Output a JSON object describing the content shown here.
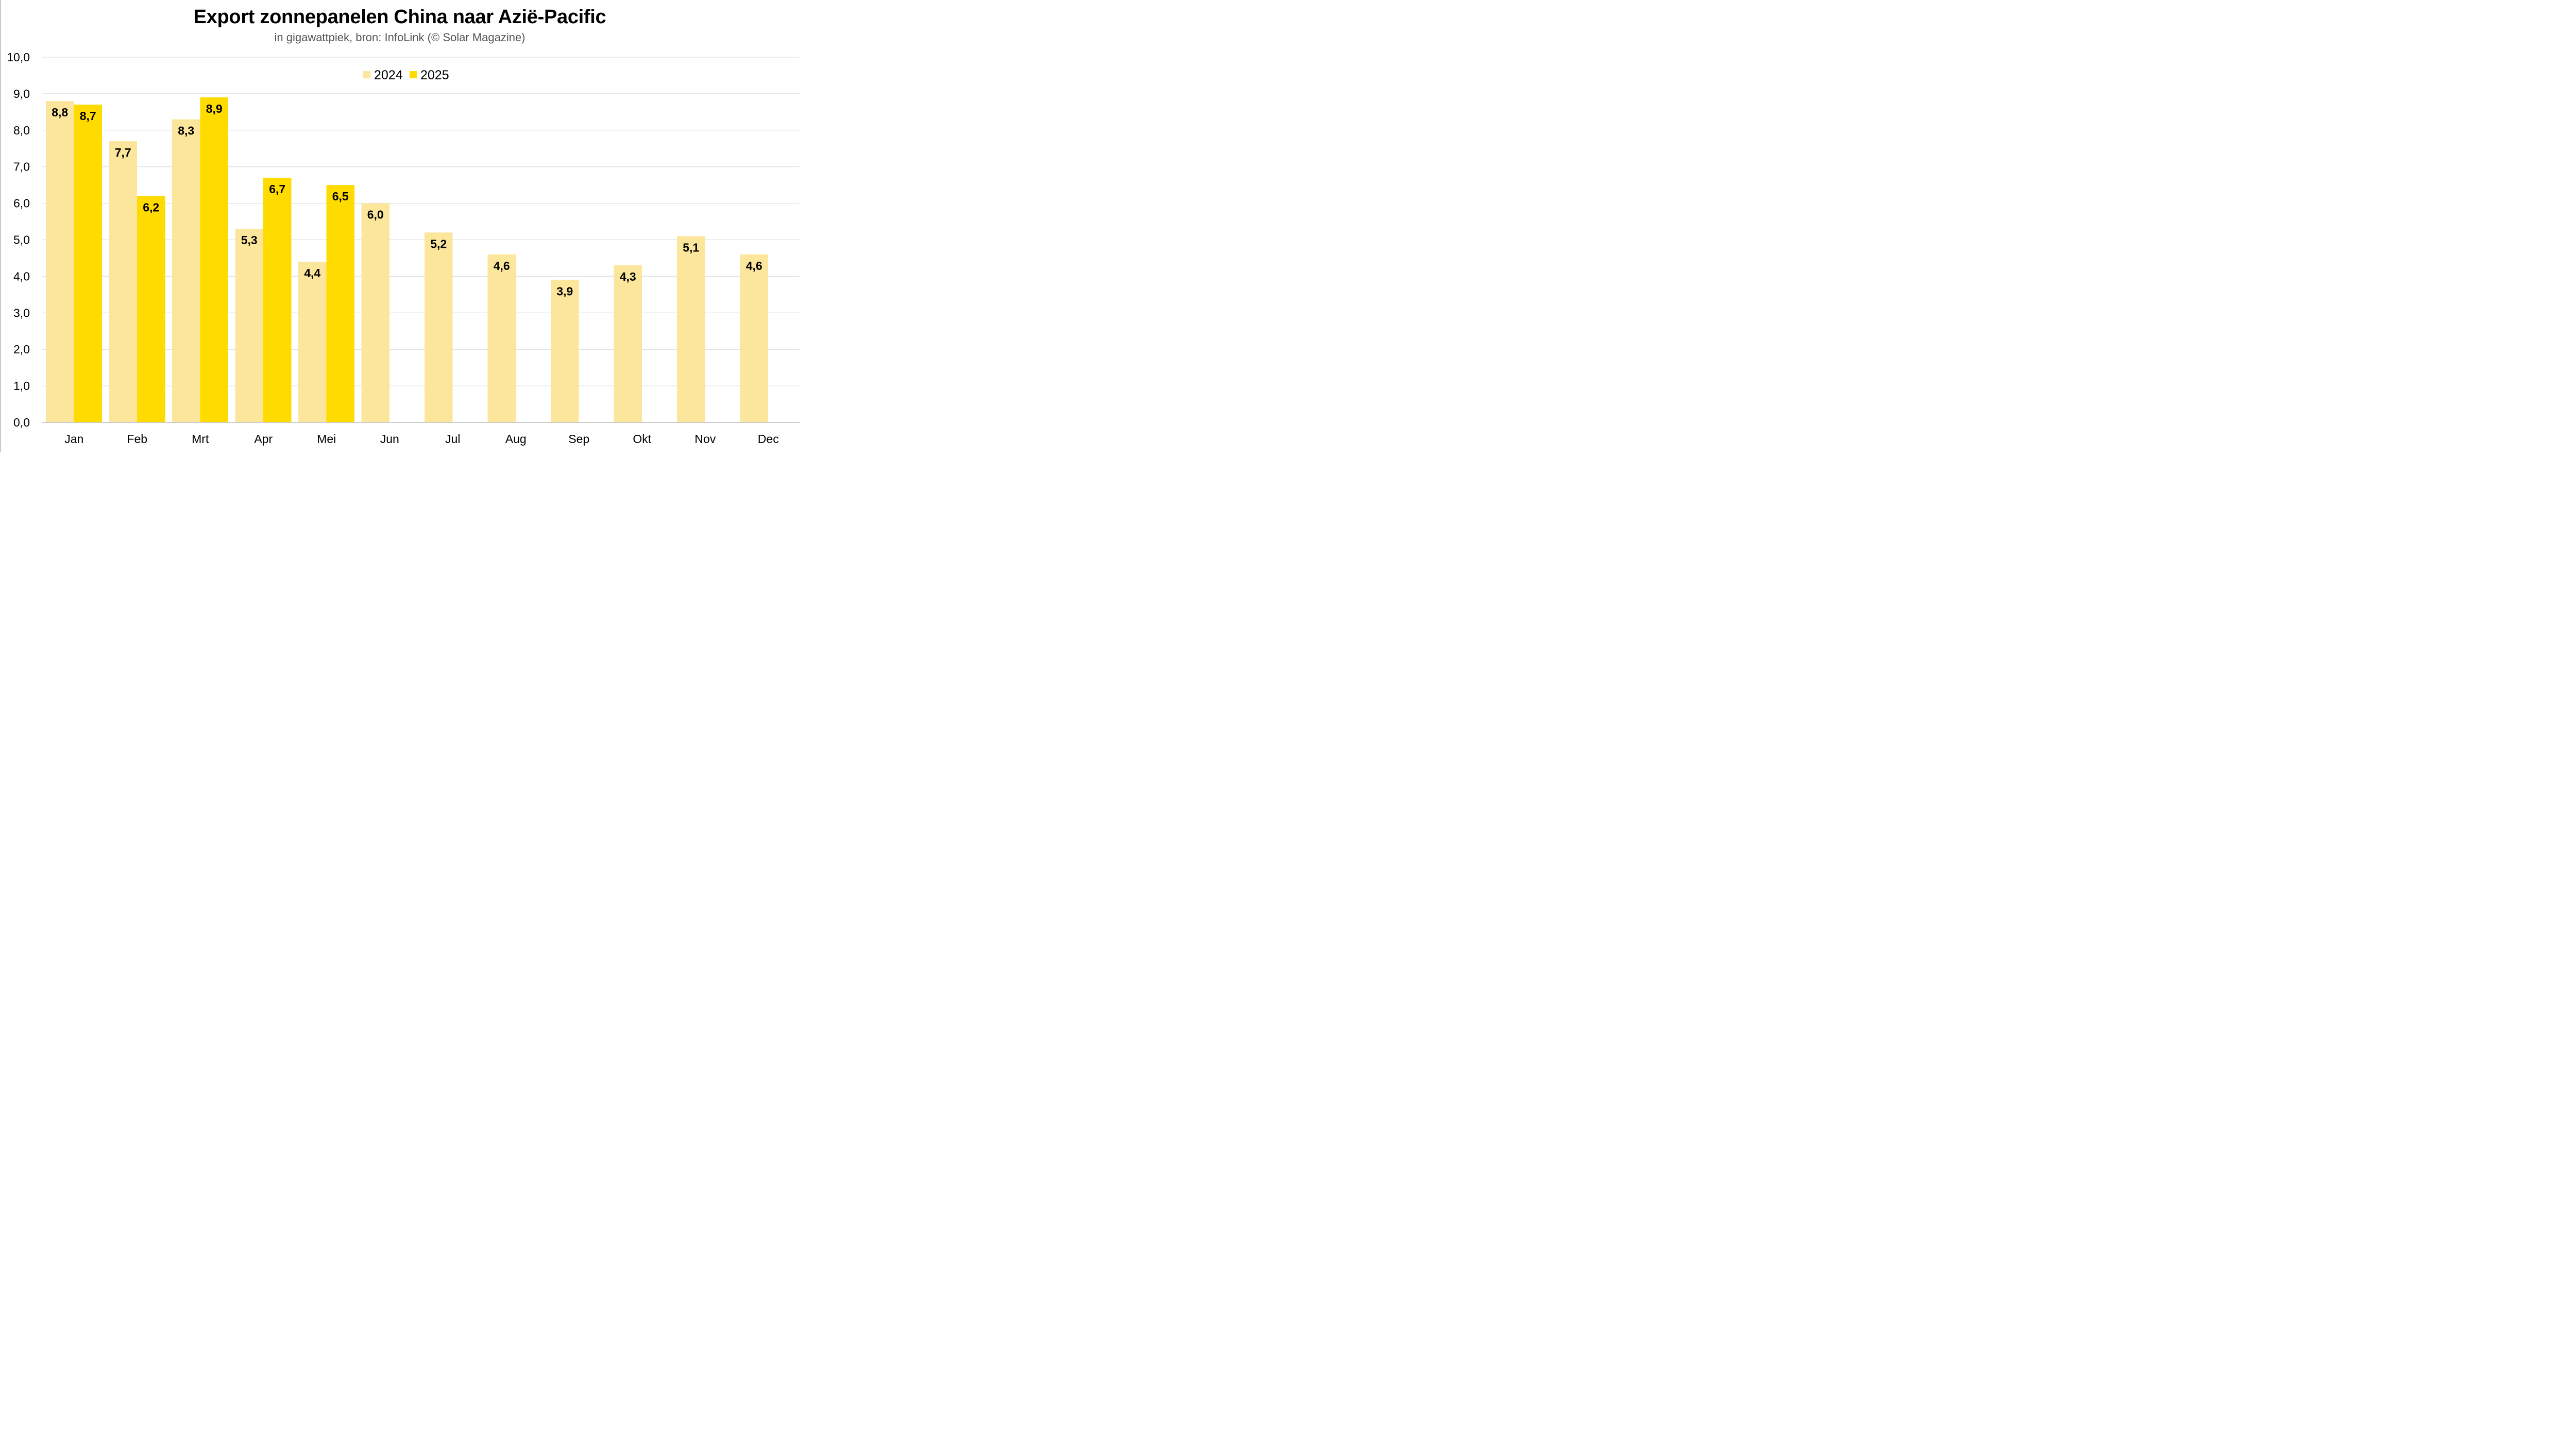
{
  "chart_data": {
    "type": "bar",
    "title": "Export zonnepanelen China naar Azië-Pacific",
    "subtitle": "in gigawattpiek, bron: InfoLink (© Solar Magazine)",
    "categories": [
      "Jan",
      "Feb",
      "Mrt",
      "Apr",
      "Mei",
      "Jun",
      "Jul",
      "Aug",
      "Sep",
      "Okt",
      "Nov",
      "Dec"
    ],
    "series": [
      {
        "name": "2024",
        "color": "#FCE69C",
        "values": [
          8.8,
          7.7,
          8.3,
          5.3,
          4.4,
          6.0,
          5.2,
          4.6,
          3.9,
          4.3,
          5.1,
          4.6
        ],
        "labels": [
          "8,8",
          "7,7",
          "8,3",
          "5,3",
          "4,4",
          "6,0",
          "5,2",
          "4,6",
          "3,9",
          "4,3",
          "5,1",
          "4,6"
        ]
      },
      {
        "name": "2025",
        "color": "#FFDB00",
        "values": [
          8.7,
          6.2,
          8.9,
          6.7,
          6.5,
          null,
          null,
          null,
          null,
          null,
          null,
          null
        ],
        "labels": [
          "8,7",
          "6,2",
          "8,9",
          "6,7",
          "6,5",
          null,
          null,
          null,
          null,
          null,
          null,
          null
        ]
      }
    ],
    "ylim": [
      0,
      10
    ],
    "yticks": [
      "0,0",
      "1,0",
      "2,0",
      "3,0",
      "4,0",
      "5,0",
      "6,0",
      "7,0",
      "8,0",
      "9,0",
      "10,0"
    ],
    "grid": true,
    "legend_position": "top-center",
    "gridline_color": "#D9D9D9",
    "axis_line_color": "#BFBFBF"
  }
}
